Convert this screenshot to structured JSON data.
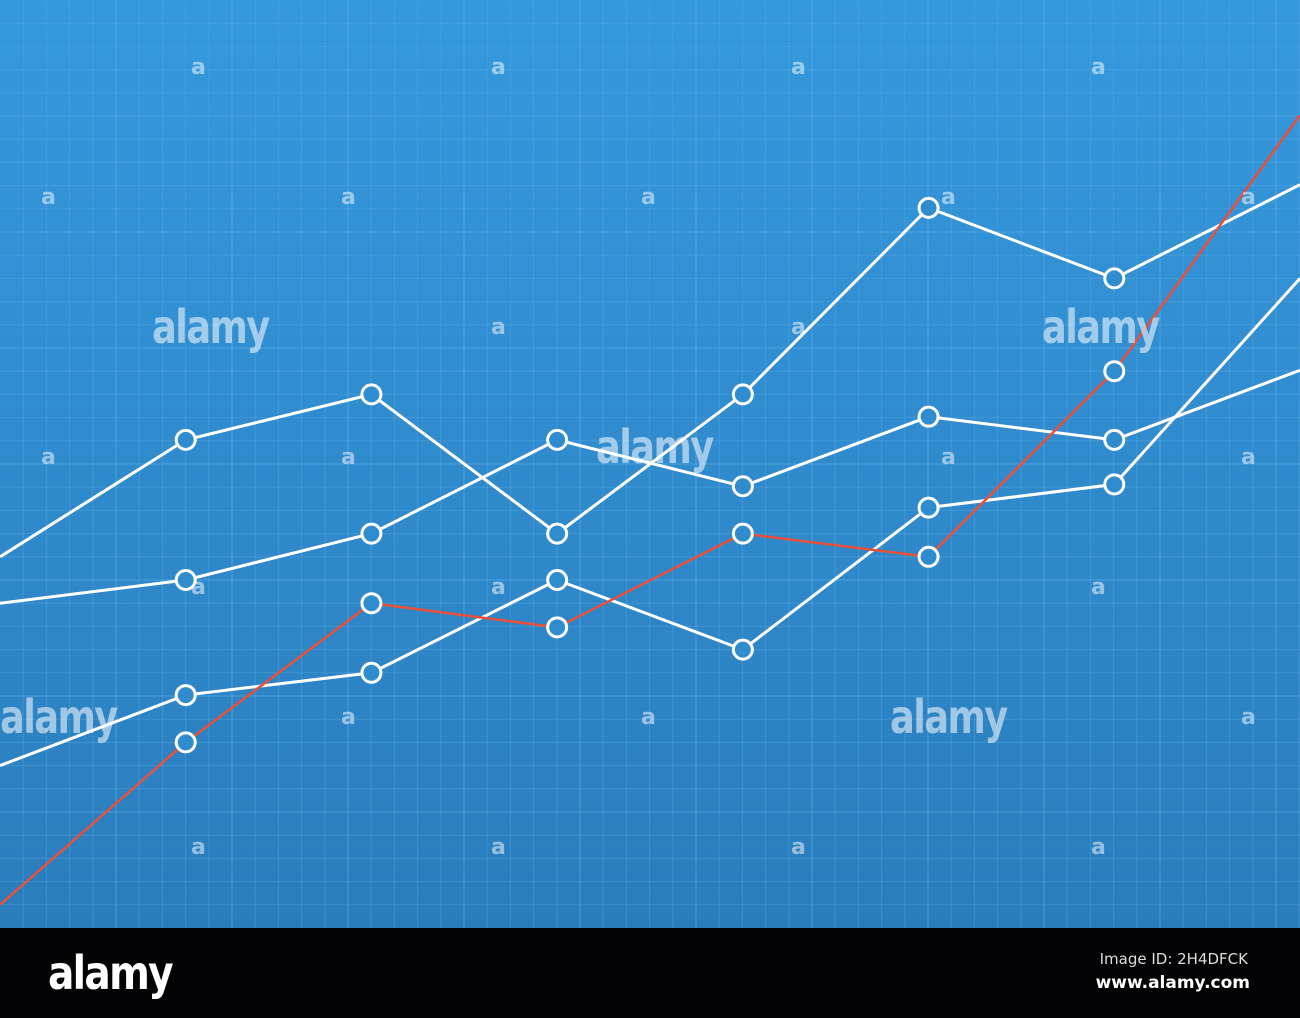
{
  "chart_data": {
    "type": "line",
    "title": "",
    "xlabel": "",
    "ylabel": "",
    "x": [
      0,
      1,
      2,
      3,
      4,
      5,
      6,
      7
    ],
    "xlim": [
      0,
      7
    ],
    "ylim": [
      0,
      100
    ],
    "grid": true,
    "axes_visible": false,
    "legend": "none",
    "marker_indices": [
      1,
      2,
      3,
      4,
      5,
      6
    ],
    "series": [
      {
        "color": "#ffffff",
        "values": [
          40.0,
          52.6,
          57.5,
          42.5,
          57.5,
          77.6,
          70.0,
          80.1
        ]
      },
      {
        "color": "#ffffff",
        "values": [
          35.0,
          37.5,
          42.5,
          52.6,
          47.6,
          55.1,
          52.6,
          60.1
        ]
      },
      {
        "color": "#ffffff",
        "values": [
          17.5,
          25.1,
          27.5,
          37.5,
          30.0,
          45.3,
          47.8,
          70.0
        ]
      },
      {
        "color": "#e8503a",
        "values": [
          2.5,
          20.0,
          35.0,
          32.4,
          42.5,
          40.0,
          60.0,
          87.6
        ]
      }
    ]
  },
  "colors": {
    "background_top": "#3599dd",
    "background_bottom": "#2a7dbd",
    "grid": "#5fb0e8",
    "marker_fill": "#2f8ccf"
  },
  "watermark": {
    "word": "alamy",
    "letter": "a"
  },
  "footer": {
    "logo": "alamy",
    "image_id": "Image ID: 2H4DFCK",
    "url": "www.alamy.com"
  }
}
